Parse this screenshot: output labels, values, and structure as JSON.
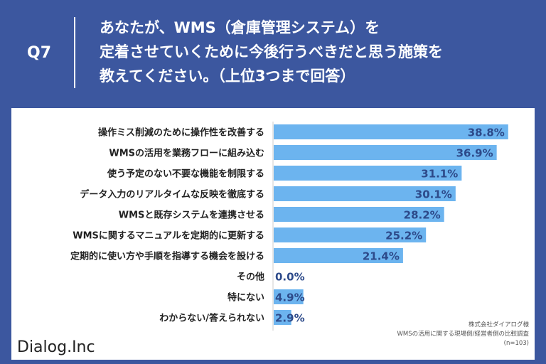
{
  "header": {
    "q_number": "Q7",
    "question_lines": [
      "あなたが、WMS（倉庫管理システム）を",
      "定着させていくために今後行うべきだと思う施策を",
      "教えてください。（上位3つまで回答）"
    ]
  },
  "chart_data": {
    "type": "bar",
    "orientation": "horizontal",
    "categories": [
      "操作ミス削減のために操作性を改善する",
      "WMSの活用を業務フローに組み込む",
      "使う予定のない不要な機能を制限する",
      "データ入力のリアルタイムな反映を徹底する",
      "WMSと既存システムを連携させる",
      "WMSに関するマニュアルを定期的に更新する",
      "定期的に使い方や手順を指導する機会を設ける",
      "その他",
      "特にない",
      "わからない/答えられない"
    ],
    "values": [
      38.8,
      36.9,
      31.1,
      30.1,
      28.2,
      25.2,
      21.4,
      0.0,
      4.9,
      2.9
    ],
    "value_labels": [
      "38.8%",
      "36.9%",
      "31.1%",
      "30.1%",
      "28.2%",
      "25.2%",
      "21.4%",
      "0.0%",
      "4.9%",
      "2.9%"
    ],
    "xlim": [
      0,
      40
    ],
    "bar_color": "#6cb4ef",
    "label_color": "#2d4a8a"
  },
  "footer": {
    "logo": "Dialog.Inc",
    "source_lines": [
      "株式会社ダイアログ様",
      "WMSの活用に関する現場側/経営者側の比較調査",
      "(n=103)"
    ]
  },
  "colors": {
    "background": "#3c579f",
    "panel": "#ffffff"
  }
}
